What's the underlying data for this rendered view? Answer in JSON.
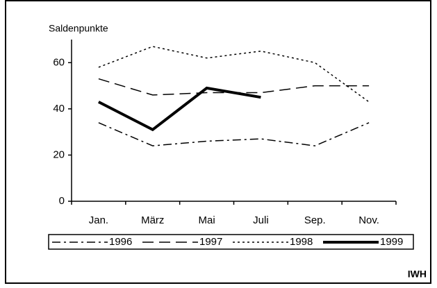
{
  "chart_data": {
    "type": "line",
    "y_label": "Saldenpunkte",
    "categories": [
      "Jan.",
      "März",
      "Mai",
      "Juli",
      "Sep.",
      "Nov."
    ],
    "series": [
      {
        "name": "1996",
        "color": "#000000",
        "values": [
          34,
          24,
          26,
          27,
          24,
          34
        ]
      },
      {
        "name": "1997",
        "color": "#000000",
        "values": [
          53,
          46,
          47,
          47,
          50,
          50
        ]
      },
      {
        "name": "1998",
        "color": "#000000",
        "values": [
          58,
          67,
          62,
          65,
          60,
          43
        ]
      },
      {
        "name": "1999",
        "color": "#000000",
        "values": [
          43,
          31,
          49,
          45,
          null,
          null
        ]
      }
    ],
    "ylim": [
      0,
      70
    ],
    "yticks": [
      0,
      20,
      40,
      60
    ],
    "grid": false,
    "source": "IWH"
  }
}
